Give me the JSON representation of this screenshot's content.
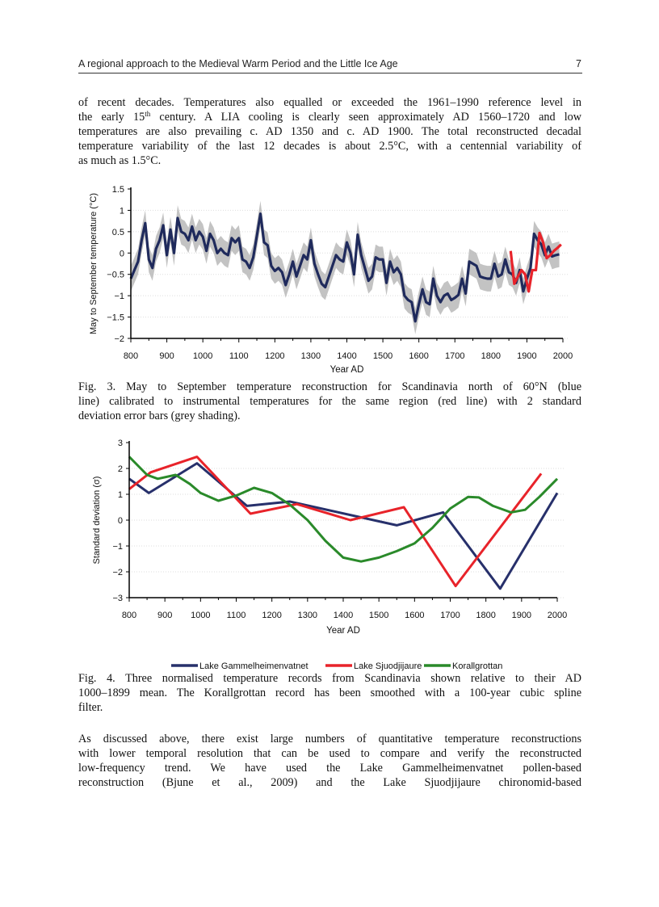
{
  "header": {
    "title": "A regional approach to the Medieval Warm Period and the Little Ice Age",
    "page_number": "7"
  },
  "paragraph1": {
    "lines": [
      "of recent decades. Temperatures also equalled or exceeded the 1961–1990 reference level in",
      [
        "the early 15",
        "th",
        " century. A LIA cooling is clearly seen approximately AD 1560–1720 and low"
      ],
      "temperatures are also prevailing c. AD 1350 and c. AD 1900. The total reconstructed decadal",
      "temperature variability of the last 12 decades is about 2.5°C, with a centennial variability of",
      "as much as 1.5°C."
    ]
  },
  "fig3_caption": {
    "lines": [
      "Fig. 3. May to September temperature reconstruction for Scandinavia north of 60°N (blue",
      "line) calibrated to instrumental temperatures for the same region (red line) with 2 standard",
      "deviation error bars (grey shading)."
    ]
  },
  "fig4_caption": {
    "lines": [
      "Fig. 4. Three normalised temperature records from Scandinavia shown relative to their AD",
      "1000–1899 mean. The Korallgrottan record has been smoothed with a 100-year cubic spline",
      "filter."
    ]
  },
  "paragraph2": {
    "lines": [
      "As discussed above, there exist large numbers of quantitative temperature reconstructions",
      "with lower temporal resolution that can be used to compare and verify the reconstructed",
      "low-frequency trend. We have used the Lake Gammelheimenvatnet pollen-based",
      "reconstruction (Bjune et al., 2009) and the Lake Sjuodjijaure chironomid-based"
    ]
  },
  "chart_data": [
    {
      "type": "line",
      "title": "",
      "xlabel": "Year AD",
      "ylabel": "May to September temperature (°C)",
      "xlim": [
        800,
        2000
      ],
      "ylim": [
        -2,
        1.5
      ],
      "xticks": [
        800,
        900,
        1000,
        1100,
        1200,
        1300,
        1400,
        1500,
        1600,
        1700,
        1800,
        1900,
        2000
      ],
      "yticks": [
        1.5,
        1,
        0.5,
        0,
        -0.5,
        -1,
        -1.5,
        -2
      ],
      "ytick_labels": [
        "1.5",
        "1",
        "0.5",
        "0",
        "−0.5",
        "−1",
        "−1.5",
        "−2"
      ],
      "grid": "horizontal dotted",
      "error_band": {
        "description_visible": false,
        "half_width": 0.3,
        "color": "#b8b8b8"
      },
      "series": [
        {
          "color": "#1f2a5c",
          "x": [
            800,
            810,
            820,
            830,
            840,
            850,
            860,
            870,
            880,
            890,
            900,
            910,
            920,
            930,
            940,
            950,
            960,
            970,
            980,
            990,
            1000,
            1010,
            1020,
            1030,
            1040,
            1050,
            1060,
            1070,
            1080,
            1090,
            1100,
            1110,
            1120,
            1130,
            1140,
            1150,
            1160,
            1170,
            1180,
            1190,
            1200,
            1210,
            1220,
            1230,
            1240,
            1250,
            1260,
            1270,
            1280,
            1290,
            1300,
            1310,
            1320,
            1330,
            1340,
            1350,
            1360,
            1370,
            1380,
            1390,
            1400,
            1410,
            1420,
            1430,
            1440,
            1450,
            1460,
            1470,
            1480,
            1490,
            1500,
            1510,
            1520,
            1530,
            1540,
            1550,
            1560,
            1570,
            1580,
            1590,
            1600,
            1610,
            1620,
            1630,
            1640,
            1650,
            1660,
            1670,
            1680,
            1690,
            1700,
            1710,
            1720,
            1730,
            1740,
            1750,
            1760,
            1770,
            1780,
            1790,
            1800,
            1810,
            1820,
            1830,
            1840,
            1850,
            1860,
            1870,
            1880,
            1890,
            1900,
            1910,
            1920,
            1930,
            1940,
            1950,
            1960,
            1970,
            1980,
            1990
          ],
          "y": [
            -0.6,
            -0.4,
            -0.2,
            0.3,
            0.7,
            -0.15,
            -0.35,
            0.1,
            0.3,
            0.65,
            -0.05,
            0.55,
            0.0,
            0.82,
            0.5,
            0.45,
            0.3,
            0.62,
            0.3,
            0.5,
            0.38,
            0.05,
            0.45,
            0.3,
            0.0,
            0.1,
            0.0,
            -0.05,
            0.35,
            0.25,
            0.35,
            -0.15,
            -0.2,
            -0.35,
            -0.1,
            0.4,
            0.92,
            0.25,
            0.18,
            -0.3,
            -0.42,
            -0.35,
            -0.45,
            -0.75,
            -0.5,
            -0.2,
            -0.55,
            -0.3,
            -0.05,
            -0.15,
            0.3,
            -0.25,
            -0.5,
            -0.72,
            -0.8,
            -0.55,
            -0.3,
            -0.05,
            -0.15,
            -0.2,
            0.25,
            0.0,
            -0.5,
            0.43,
            -0.05,
            -0.35,
            -0.65,
            -0.55,
            -0.1,
            -0.15,
            -0.15,
            -0.7,
            -0.2,
            -0.45,
            -0.35,
            -0.5,
            -1.0,
            -1.1,
            -1.15,
            -1.6,
            -1.2,
            -0.85,
            -1.15,
            -1.2,
            -0.6,
            -1.0,
            -1.15,
            -1.0,
            -0.95,
            -1.1,
            -1.05,
            -0.98,
            -0.6,
            -0.95,
            -0.2,
            -0.25,
            -0.3,
            -0.55,
            -0.58,
            -0.6,
            -0.6,
            -0.25,
            -0.55,
            -0.5,
            -0.15,
            -0.45,
            -0.5,
            -0.7,
            -0.4,
            -0.9,
            -0.6,
            -0.35,
            0.45,
            0.3,
            0.2,
            -0.05,
            0.15,
            -0.08,
            -0.05,
            -0.03
          ]
        },
        {
          "color": "#e8232a",
          "x": [
            1855,
            1865,
            1875,
            1885,
            1895,
            1905,
            1915,
            1925,
            1935,
            1945,
            1955,
            1965,
            1975,
            1985,
            1995
          ],
          "y": [
            0.05,
            -0.72,
            -0.55,
            -0.4,
            -0.5,
            -0.9,
            -0.4,
            -0.4,
            0.47,
            0.25,
            -0.12,
            -0.05,
            0.05,
            0.12,
            0.2
          ]
        }
      ]
    },
    {
      "type": "line",
      "title": "",
      "xlabel": "Year AD",
      "ylabel": "Standard deviation (σ)",
      "xlim": [
        800,
        2000
      ],
      "ylim": [
        -3,
        3
      ],
      "xticks": [
        800,
        900,
        1000,
        1100,
        1200,
        1300,
        1400,
        1500,
        1600,
        1700,
        1800,
        1900,
        2000
      ],
      "yticks": [
        3,
        2,
        1,
        0,
        -1,
        -2,
        -3
      ],
      "ytick_labels": [
        "3",
        "2",
        "1",
        "0",
        "−1",
        "−2",
        "−3"
      ],
      "legend": "bottom",
      "series": [
        {
          "name": "Lake Gammelheimenvatnet",
          "color": "#27306b",
          "x": [
            800,
            855,
            990,
            1130,
            1250,
            1550,
            1680,
            1840,
            2000
          ],
          "y": [
            1.6,
            1.05,
            2.2,
            0.55,
            0.72,
            -0.2,
            0.3,
            -2.65,
            1.05
          ]
        },
        {
          "name": "Lake Sjuodjijaure",
          "color": "#e8232a",
          "x": [
            800,
            860,
            990,
            1140,
            1270,
            1420,
            1570,
            1715,
            1955
          ],
          "y": [
            1.2,
            1.85,
            2.45,
            0.25,
            0.62,
            0.0,
            0.5,
            -2.55,
            1.8
          ]
        },
        {
          "name": "Korallgrottan",
          "color": "#2a8a2a",
          "x": [
            800,
            850,
            880,
            930,
            970,
            1000,
            1050,
            1100,
            1150,
            1200,
            1250,
            1300,
            1350,
            1400,
            1450,
            1500,
            1550,
            1600,
            1650,
            1700,
            1750,
            1780,
            1820,
            1870,
            1910,
            1950,
            2000
          ],
          "y": [
            2.45,
            1.75,
            1.6,
            1.75,
            1.4,
            1.05,
            0.75,
            0.95,
            1.25,
            1.05,
            0.6,
            0.0,
            -0.8,
            -1.45,
            -1.6,
            -1.45,
            -1.2,
            -0.9,
            -0.3,
            0.45,
            0.9,
            0.88,
            0.55,
            0.3,
            0.4,
            0.9,
            1.6
          ]
        }
      ]
    }
  ]
}
